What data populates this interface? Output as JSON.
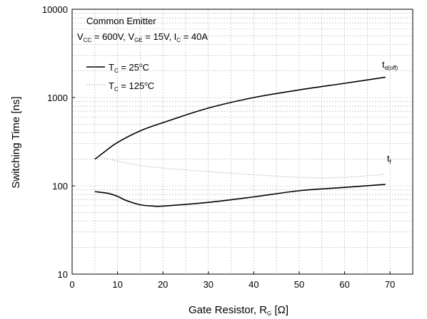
{
  "chart_data": {
    "type": "line",
    "xlabel": {
      "main": "Gate Resistor, R",
      "sub": "G",
      "unit": " [Ω]"
    },
    "ylabel": "Switching Time [ns]",
    "xlim": [
      0,
      75
    ],
    "ylim": [
      10,
      10000
    ],
    "yscale": "log",
    "x_ticks": [
      0,
      10,
      20,
      30,
      40,
      50,
      60,
      70
    ],
    "y_ticks": [
      10,
      100,
      1000,
      10000
    ],
    "grid": true,
    "conditions": {
      "line1": "Common Emitter",
      "vcc": {
        "main": "V",
        "sub": "CC",
        "value": " = 600V, "
      },
      "vge": {
        "main": "V",
        "sub": "GE",
        "value": " = 15V, "
      },
      "ic": {
        "main": "I",
        "sub": "C",
        "value": " = 40A"
      }
    },
    "legend": [
      {
        "main": "T",
        "sub": "C",
        "value": " = 25",
        "sup": "o",
        "unit": "C",
        "style": "solid",
        "color": "#000000"
      },
      {
        "main": "T",
        "sub": "C",
        "value": " = 125",
        "sup": "o",
        "unit": "C",
        "style": "dotted",
        "color": "#bbbbbb"
      }
    ],
    "series": [
      {
        "label": {
          "main": "t",
          "sub": "d(off)"
        },
        "tc": "25C",
        "x": [
          5,
          7,
          10,
          15,
          20,
          30,
          40,
          50,
          60,
          69
        ],
        "y": [
          200,
          240,
          310,
          420,
          520,
          760,
          1000,
          1220,
          1450,
          1700
        ]
      },
      {
        "label": {
          "main": "t",
          "sub": "f"
        },
        "tc": "25C",
        "x": [
          5,
          8,
          10,
          12,
          15,
          18,
          20,
          30,
          40,
          50,
          60,
          69
        ],
        "y": [
          86,
          82,
          76,
          68,
          61,
          59,
          59,
          65,
          75,
          88,
          96,
          104
        ]
      },
      {
        "tc": "125C",
        "x": [
          5,
          15,
          30,
          50,
          60,
          69
        ],
        "y": [
          220,
          170,
          145,
          125,
          125,
          135
        ]
      }
    ]
  }
}
